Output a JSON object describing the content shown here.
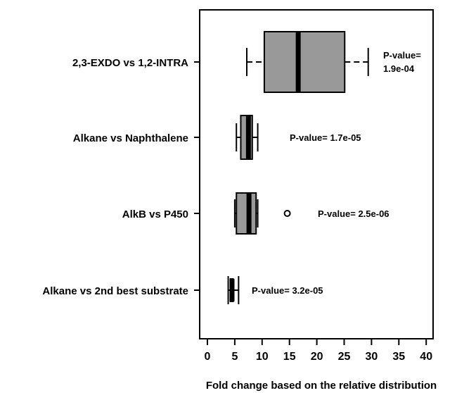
{
  "chart_data": {
    "type": "boxplot",
    "orientation": "horizontal",
    "title": "",
    "xlabel": "Fold change based on the relative distribution",
    "ylabel": "",
    "xlim": [
      -2,
      42
    ],
    "xticks": [
      0,
      5,
      10,
      15,
      20,
      25,
      30,
      35,
      40
    ],
    "grid": false,
    "legend": "none",
    "colors": {
      "box_fill": "#999999",
      "stroke": "#000000",
      "background": "#ffffff"
    },
    "categories": [
      "2,3-EXDO vs 1,2-INTRA",
      "Alkane vs Naphthalene",
      "AlkB vs P450",
      "Alkane vs 2nd best substrate"
    ],
    "boxes": [
      {
        "category": "2,3-EXDO vs 1,2-INTRA",
        "whisker_low": 7.2,
        "q1": 10.4,
        "median": 16.6,
        "q3": 25.1,
        "whisker_high": 29.4,
        "outliers": [],
        "pvalue_lines": [
          "P-value=",
          "1.9e-04"
        ]
      },
      {
        "category": "Alkane vs Naphthalene",
        "whisker_low": 5.3,
        "q1": 6.1,
        "median": 7.5,
        "q3": 8.2,
        "whisker_high": 9.2,
        "outliers": [],
        "pvalue_lines": [
          "P-value= 1.7e-05"
        ]
      },
      {
        "category": "AlkB vs P450",
        "whisker_low": 5.0,
        "q1": 5.3,
        "median": 7.6,
        "q3": 8.9,
        "whisker_high": 9.2,
        "outliers": [
          14.6
        ],
        "pvalue_lines": [
          "P-value= 2.5e-06"
        ]
      },
      {
        "category": "Alkane vs 2nd best substrate",
        "whisker_low": 3.8,
        "q1": 4.2,
        "median": 4.5,
        "q3": 4.7,
        "whisker_high": 5.7,
        "outliers": [],
        "pvalue_lines": [
          "P-value= 3.2e-05"
        ]
      }
    ]
  }
}
